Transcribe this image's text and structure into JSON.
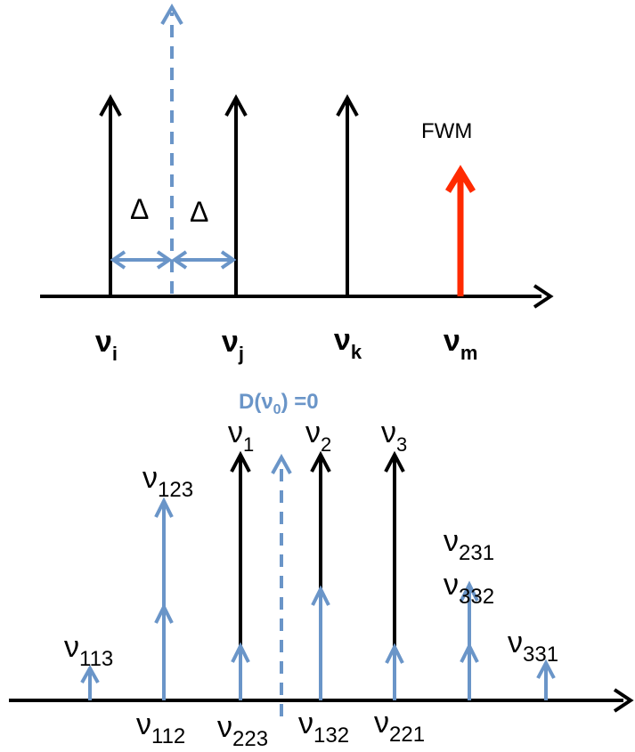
{
  "colors": {
    "black": "#000000",
    "blue": "#6A95C8",
    "red": "#FF2A00"
  },
  "top_diagram": {
    "delta_left": "Δ",
    "delta_right": "Δ",
    "fwm_label": "FWM",
    "freq_labels": [
      {
        "main": "ν",
        "sub": "i"
      },
      {
        "main": "ν",
        "sub": "j"
      },
      {
        "main": "ν",
        "sub": "k"
      },
      {
        "main": "ν",
        "sub": "m"
      }
    ]
  },
  "bottom_diagram": {
    "zero_dispersion_label": {
      "prefix": "D(ν",
      "sub": "0",
      "suffix": ") =0"
    },
    "pump_labels": [
      {
        "main": "ν",
        "sub": "1"
      },
      {
        "main": "ν",
        "sub": "2"
      },
      {
        "main": "ν",
        "sub": "3"
      }
    ],
    "upper_product_labels": [
      {
        "main": "ν",
        "sub": "123"
      },
      {
        "main": "ν",
        "sub": "231"
      },
      {
        "main": "ν",
        "sub": "332"
      },
      {
        "main": "ν",
        "sub": "113"
      },
      {
        "main": "ν",
        "sub": "331"
      }
    ],
    "lower_product_labels": [
      {
        "main": "ν",
        "sub": "112"
      },
      {
        "main": "ν",
        "sub": "223"
      },
      {
        "main": "ν",
        "sub": "132"
      },
      {
        "main": "ν",
        "sub": "221"
      }
    ]
  }
}
